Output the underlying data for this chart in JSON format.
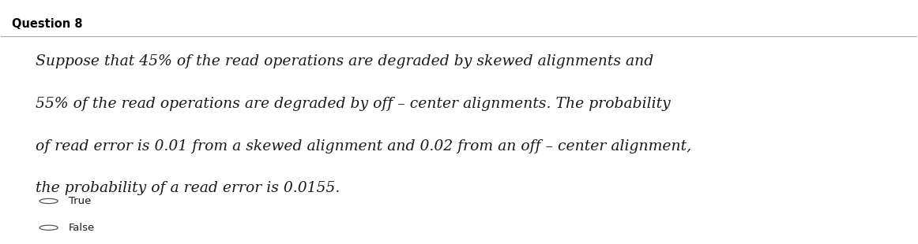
{
  "title": "Question 8",
  "body_lines": [
    "Suppose that 45% of the read operations are degraded by skewed alignments and",
    "55% of the read operations are degraded by off – center alignments. The probability",
    "of read error is 0.01 from a skewed alignment and 0.02 from an off – center alignment,",
    "the probability of a read error is 0.0155."
  ],
  "options": [
    "True",
    "False"
  ],
  "bg_color": "#ffffff",
  "title_color": "#000000",
  "body_color": "#1a1a1a",
  "option_color": "#1a1a1a",
  "title_fontsize": 10.5,
  "body_fontsize": 13.5,
  "option_fontsize": 9.5,
  "line_color": "#aaaaaa"
}
